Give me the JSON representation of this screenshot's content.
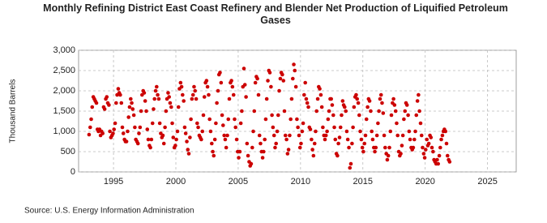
{
  "chart_data": {
    "type": "scatter",
    "title": "Monthly Refining District East Coast Refinery and Blender Net Production of Liquified Petroleum Gases",
    "y_label": "Thousand Barrels",
    "source": "Source: U.S. Energy Information Administration",
    "color": "#cc0000",
    "grid": true,
    "xlim": [
      1992.2,
      2027.3
    ],
    "ylim": [
      0,
      3000
    ],
    "xticks": [
      1995,
      2000,
      2005,
      2010,
      2015,
      2020,
      2025
    ],
    "yticks": [
      0,
      500,
      {
        "value": 1000,
        "label": "1,000"
      },
      {
        "value": 1500,
        "label": "1,500"
      },
      {
        "value": 2000,
        "label": "2,000"
      },
      {
        "value": 2500,
        "label": "2,500"
      },
      {
        "value": 3000,
        "label": "3,000"
      }
    ],
    "x": [
      1993.04,
      1993.13,
      1993.21,
      1993.29,
      1993.38,
      1993.46,
      1993.54,
      1993.63,
      1993.71,
      1993.79,
      1993.88,
      1993.96,
      1994.04,
      1994.13,
      1994.21,
      1994.29,
      1994.38,
      1994.46,
      1994.54,
      1994.63,
      1994.71,
      1994.79,
      1994.88,
      1994.96,
      1995.04,
      1995.13,
      1995.21,
      1995.29,
      1995.38,
      1995.46,
      1995.54,
      1995.63,
      1995.71,
      1995.79,
      1995.88,
      1995.96,
      1996.04,
      1996.13,
      1996.21,
      1996.29,
      1996.38,
      1996.46,
      1996.54,
      1996.63,
      1996.71,
      1996.79,
      1996.88,
      1996.96,
      1997.04,
      1997.13,
      1997.21,
      1997.29,
      1997.38,
      1997.46,
      1997.54,
      1997.63,
      1997.71,
      1997.79,
      1997.88,
      1997.96,
      1998.04,
      1998.13,
      1998.21,
      1998.29,
      1998.38,
      1998.46,
      1998.54,
      1998.63,
      1998.71,
      1998.79,
      1998.88,
      1998.96,
      1999.04,
      1999.13,
      1999.21,
      1999.29,
      1999.38,
      1999.46,
      1999.54,
      1999.63,
      1999.71,
      1999.79,
      1999.88,
      1999.96,
      2000.04,
      2000.13,
      2000.21,
      2000.29,
      2000.38,
      2000.46,
      2000.54,
      2000.63,
      2000.71,
      2000.79,
      2000.88,
      2000.96,
      2001.04,
      2001.13,
      2001.21,
      2001.29,
      2001.38,
      2001.46,
      2001.54,
      2001.63,
      2001.71,
      2001.79,
      2001.88,
      2001.96,
      2002.04,
      2002.13,
      2002.21,
      2002.29,
      2002.38,
      2002.46,
      2002.54,
      2002.63,
      2002.71,
      2002.79,
      2002.88,
      2002.96,
      2003.04,
      2003.13,
      2003.21,
      2003.29,
      2003.38,
      2003.46,
      2003.54,
      2003.63,
      2003.71,
      2003.79,
      2003.88,
      2003.96,
      2004.04,
      2004.13,
      2004.21,
      2004.29,
      2004.38,
      2004.46,
      2004.54,
      2004.63,
      2004.71,
      2004.79,
      2004.88,
      2004.96,
      2005.04,
      2005.13,
      2005.21,
      2005.29,
      2005.38,
      2005.46,
      2005.54,
      2005.63,
      2005.71,
      2005.79,
      2005.88,
      2005.96,
      2006.04,
      2006.13,
      2006.21,
      2006.29,
      2006.38,
      2006.46,
      2006.54,
      2006.63,
      2006.71,
      2006.79,
      2006.88,
      2006.96,
      2007.04,
      2007.13,
      2007.21,
      2007.29,
      2007.38,
      2007.46,
      2007.54,
      2007.63,
      2007.71,
      2007.79,
      2007.88,
      2007.96,
      2008.04,
      2008.13,
      2008.21,
      2008.29,
      2008.38,
      2008.46,
      2008.54,
      2008.63,
      2008.71,
      2008.79,
      2008.88,
      2008.96,
      2009.04,
      2009.13,
      2009.21,
      2009.29,
      2009.38,
      2009.46,
      2009.54,
      2009.63,
      2009.71,
      2009.79,
      2009.88,
      2009.96,
      2010.04,
      2010.13,
      2010.21,
      2010.29,
      2010.38,
      2010.46,
      2010.54,
      2010.63,
      2010.71,
      2010.79,
      2010.88,
      2010.96,
      2011.04,
      2011.13,
      2011.21,
      2011.29,
      2011.38,
      2011.46,
      2011.54,
      2011.63,
      2011.71,
      2011.79,
      2011.88,
      2011.96,
      2012.04,
      2012.13,
      2012.21,
      2012.29,
      2012.38,
      2012.46,
      2012.54,
      2012.63,
      2012.71,
      2012.79,
      2012.88,
      2012.96,
      2013.04,
      2013.13,
      2013.21,
      2013.29,
      2013.38,
      2013.46,
      2013.54,
      2013.63,
      2013.71,
      2013.79,
      2013.88,
      2013.96,
      2014.04,
      2014.13,
      2014.21,
      2014.29,
      2014.38,
      2014.46,
      2014.54,
      2014.63,
      2014.71,
      2014.79,
      2014.88,
      2014.96,
      2015.04,
      2015.13,
      2015.21,
      2015.29,
      2015.38,
      2015.46,
      2015.54,
      2015.63,
      2015.71,
      2015.79,
      2015.88,
      2015.96,
      2016.04,
      2016.13,
      2016.21,
      2016.29,
      2016.38,
      2016.46,
      2016.54,
      2016.63,
      2016.71,
      2016.79,
      2016.88,
      2016.96,
      2017.04,
      2017.13,
      2017.21,
      2017.29,
      2017.38,
      2017.46,
      2017.54,
      2017.63,
      2017.71,
      2017.79,
      2017.88,
      2017.96,
      2018.04,
      2018.13,
      2018.21,
      2018.29,
      2018.38,
      2018.46,
      2018.54,
      2018.63,
      2018.71,
      2018.79,
      2018.88,
      2018.96,
      2019.04,
      2019.13,
      2019.21,
      2019.29,
      2019.38,
      2019.46,
      2019.54,
      2019.63,
      2019.71,
      2019.79,
      2019.88,
      2019.96,
      2020.04,
      2020.13,
      2020.21,
      2020.29,
      2020.38,
      2020.46,
      2020.54,
      2020.63,
      2020.71,
      2020.79,
      2020.88,
      2020.96,
      2021.04,
      2021.13,
      2021.21,
      2021.29,
      2021.38,
      2021.46,
      2021.54,
      2021.63,
      2021.71,
      2021.79,
      2021.88,
      2021.96
    ],
    "values": [
      920,
      1100,
      1300,
      1600,
      1850,
      1800,
      1750,
      1700,
      1050,
      1000,
      1050,
      900,
      1000,
      950,
      1600,
      1550,
      1800,
      1850,
      1700,
      1650,
      1000,
      850,
      900,
      950,
      1050,
      1200,
      1700,
      1900,
      2050,
      1950,
      1900,
      1700,
      1100,
      950,
      800,
      750,
      750,
      1000,
      1350,
      1600,
      1800,
      1700,
      1550,
      1400,
      1100,
      800,
      750,
      700,
      950,
      1100,
      1500,
      1900,
      2000,
      1950,
      1750,
      1500,
      1050,
      800,
      650,
      600,
      800,
      1200,
      1550,
      1800,
      2000,
      2100,
      1900,
      1800,
      1200,
      950,
      850,
      900,
      700,
      1100,
      1500,
      1800,
      1950,
      1850,
      1700,
      1600,
      1200,
      850,
      600,
      650,
      800,
      1000,
      1600,
      2050,
      2200,
      2100,
      1900,
      1750,
      1100,
      950,
      750,
      550,
      450,
      850,
      1300,
      1800,
      1900,
      2100,
      2000,
      1800,
      1200,
      1100,
      900,
      850,
      800,
      1000,
      1400,
      1850,
      2200,
      2250,
      2100,
      1900,
      1300,
      1000,
      700,
      500,
      400,
      800,
      1200,
      1700,
      2000,
      2400,
      2450,
      2200,
      1400,
      1150,
      900,
      800,
      600,
      900,
      1300,
      1800,
      2200,
      2250,
      2100,
      1900,
      1300,
      1100,
      800,
      500,
      350,
      500,
      1200,
      1500,
      2100,
      2550,
      2150,
      1850,
      700,
      400,
      250,
      150,
      200,
      600,
      1000,
      1500,
      2200,
      2350,
      2300,
      1900,
      900,
      700,
      500,
      350,
      500,
      800,
      1300,
      1800,
      2250,
      2500,
      2450,
      2100,
      1400,
      1100,
      900,
      600,
      700,
      1000,
      1400,
      2000,
      2300,
      2450,
      2400,
      2250,
      1500,
      900,
      800,
      450,
      550,
      900,
      1300,
      1800,
      2300,
      2650,
      2500,
      2100,
      1300,
      1100,
      900,
      600,
      700,
      1000,
      1200,
      1900,
      2200,
      1800,
      1700,
      1600,
      1100,
      1050,
      800,
      550,
      400,
      700,
      1000,
      1500,
      1800,
      2100,
      2050,
      1900,
      1600,
      1100,
      900,
      800,
      900,
      1000,
      1300,
      1500,
      1800,
      1800,
      1650,
      1400,
      1100,
      800,
      450,
      400,
      700,
      850,
      1100,
      1400,
      1750,
      1650,
      1600,
      1500,
      1000,
      800,
      600,
      100,
      200,
      700,
      1100,
      1600,
      1850,
      1900,
      1800,
      1700,
      1400,
      1000,
      800,
      600,
      500,
      700,
      900,
      1300,
      1600,
      1800,
      1750,
      1500,
      1000,
      800,
      600,
      500,
      600,
      900,
      1200,
      1500,
      1800,
      1900,
      1700,
      1450,
      900,
      600,
      450,
      300,
      400,
      600,
      1000,
      1400,
      1700,
      1800,
      1650,
      1500,
      1200,
      900,
      500,
      400,
      450,
      650,
      900,
      1300,
      1500,
      1700,
      1650,
      1400,
      1000,
      800,
      600,
      550,
      600,
      800,
      1000,
      1400,
      1750,
      1900,
      1500,
      1200,
      900,
      600,
      450,
      350,
      550,
      800,
      650,
      700,
      900,
      850,
      600,
      500,
      300,
      250,
      200,
      300,
      200,
      400,
      600,
      800,
      900,
      1000,
      1050,
      1000,
      700,
      400,
      300,
      250
    ]
  }
}
